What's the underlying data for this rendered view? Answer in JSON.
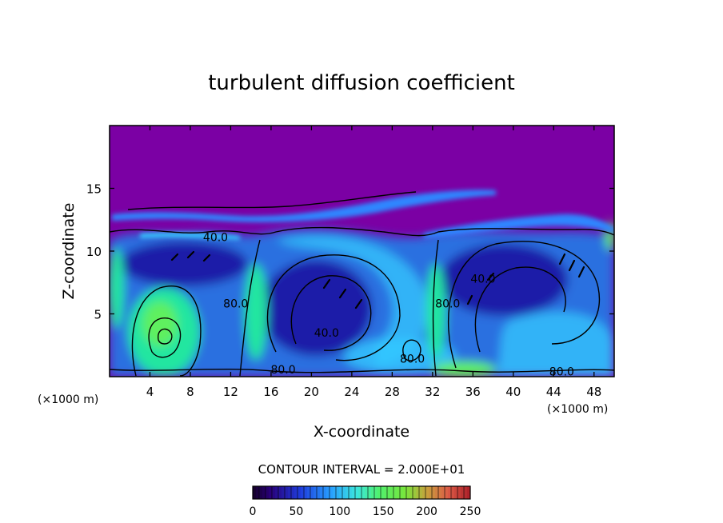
{
  "chart_data": {
    "type": "heatmap",
    "title": "turbulent diffusion coefficient",
    "xlabel": "X-coordinate",
    "ylabel": "Z-coordinate",
    "x_unit": "(×1000 m)",
    "z_unit": "(×1000 m)",
    "xlim": [
      0,
      50
    ],
    "zlim": [
      0,
      20
    ],
    "x_ticks": [
      4,
      8,
      12,
      16,
      20,
      24,
      28,
      32,
      36,
      40,
      44,
      48
    ],
    "z_ticks": [
      5,
      10,
      15
    ],
    "contour_interval_text": "CONTOUR INTERVAL = 2.000E+01",
    "contour_labels": [
      {
        "text": "40.0",
        "x": 10.5,
        "z": 10.8
      },
      {
        "text": "40.0",
        "x": 21.5,
        "z": 3.2
      },
      {
        "text": "40.0",
        "x": 37.0,
        "z": 7.5
      },
      {
        "text": "80.0",
        "x": 12.5,
        "z": 5.5
      },
      {
        "text": "80.0",
        "x": 33.5,
        "z": 5.5
      },
      {
        "text": "80.0",
        "x": 17.2,
        "z": 0.25
      },
      {
        "text": "80.0",
        "x": 30.0,
        "z": 1.1
      },
      {
        "text": "80.0",
        "x": 44.8,
        "z": 0.1
      }
    ],
    "colorbar": {
      "min": 0,
      "max": 250,
      "ticks": [
        0,
        50,
        100,
        150,
        200,
        250
      ]
    },
    "colors": {
      "background": "#7B00A4",
      "low": "#1a1aa8",
      "mid_low": "#2f86ff",
      "mid": "#33c9ff",
      "mid_high": "#22e6a0",
      "high": "#5ef05e",
      "contour": "#000000"
    }
  }
}
